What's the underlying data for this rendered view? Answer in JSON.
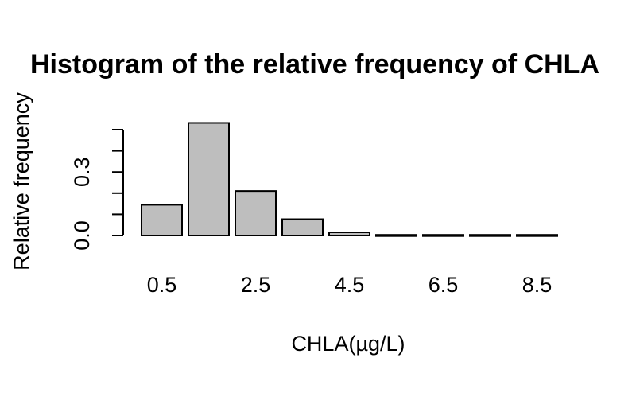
{
  "chart_data": {
    "type": "bar",
    "title": "Histogram of the relative frequency of CHLA",
    "xlabel": "CHLA(µg/L)",
    "ylabel": "Relative frequency",
    "categories": [
      "0.5",
      "1.5",
      "2.5",
      "3.5",
      "4.5",
      "5.5",
      "6.5",
      "7.5",
      "8.5"
    ],
    "x_tick_labels": [
      "0.5",
      "2.5",
      "4.5",
      "6.5",
      "8.5"
    ],
    "values": [
      0.145,
      0.532,
      0.21,
      0.077,
      0.015,
      0.003,
      0.003,
      0.003,
      0.003
    ],
    "y_ticks": [
      0.0,
      0.1,
      0.2,
      0.3,
      0.4,
      0.5
    ],
    "y_tick_labels": [
      "0.0",
      "0.3"
    ],
    "ylim": [
      0,
      0.5
    ],
    "bar_color": "#bebebe",
    "grid": false,
    "legend": false
  }
}
